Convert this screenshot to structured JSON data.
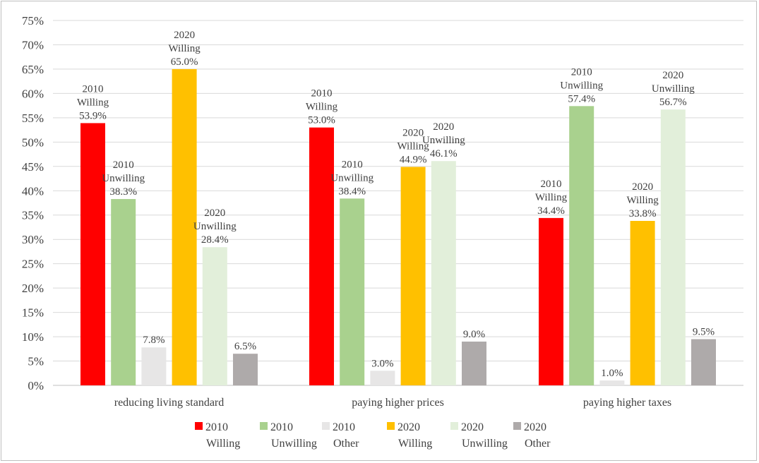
{
  "chart_data": {
    "type": "bar",
    "categories": [
      "reducing living standard",
      "paying higher prices",
      "paying higher taxes"
    ],
    "series": [
      {
        "name": [
          "2010",
          "Willing"
        ],
        "color": "#ff0000",
        "values": [
          53.9,
          53.0,
          34.4
        ]
      },
      {
        "name": [
          "2010",
          "Unwilling"
        ],
        "color": "#a9d18e",
        "values": [
          38.3,
          38.4,
          57.4
        ]
      },
      {
        "name": [
          "2010",
          "Other"
        ],
        "color": "#e7e6e6",
        "values": [
          7.8,
          3.0,
          1.0
        ]
      },
      {
        "name": [
          "2020",
          "Willing"
        ],
        "color": "#ffc000",
        "values": [
          65.0,
          44.9,
          33.8
        ]
      },
      {
        "name": [
          "2020",
          "Unwilling"
        ],
        "color": "#e2efda",
        "values": [
          28.4,
          46.1,
          56.7
        ]
      },
      {
        "name": [
          "2020",
          "Other"
        ],
        "color": "#aeaaaa",
        "values": [
          6.5,
          9.0,
          9.5
        ]
      }
    ],
    "data_labels": [
      [
        [
          "2010",
          "Willing",
          "53.9%"
        ],
        [
          "2010",
          "Unwilling",
          "38.3%"
        ],
        [
          "7.8%"
        ],
        [
          "2020",
          "Willing",
          "65.0%"
        ],
        [
          "2020",
          "Unwilling",
          "28.4%"
        ],
        [
          "6.5%"
        ]
      ],
      [
        [
          "2010",
          "Willing",
          "53.0%"
        ],
        [
          "2010",
          "Unwilling",
          "38.4%"
        ],
        [
          "3.0%"
        ],
        [
          "2020",
          "Willing",
          "44.9%"
        ],
        [
          "2020",
          "Unwilling",
          "46.1%"
        ],
        [
          "9.0%"
        ]
      ],
      [
        [
          "2010",
          "Willing",
          "34.4%"
        ],
        [
          "2010",
          "Unwilling",
          "57.4%"
        ],
        [
          "1.0%"
        ],
        [
          "2020",
          "Willing",
          "33.8%"
        ],
        [
          "2020",
          "Unwilling",
          "56.7%"
        ],
        [
          "9.5%"
        ]
      ]
    ],
    "y_ticks": [
      "0%",
      "5%",
      "10%",
      "15%",
      "20%",
      "25%",
      "30%",
      "35%",
      "40%",
      "45%",
      "50%",
      "55%",
      "60%",
      "65%",
      "70%",
      "75%"
    ],
    "ylim": [
      0,
      75
    ],
    "y_unit": "%",
    "grid": true,
    "legend_position": "bottom"
  }
}
